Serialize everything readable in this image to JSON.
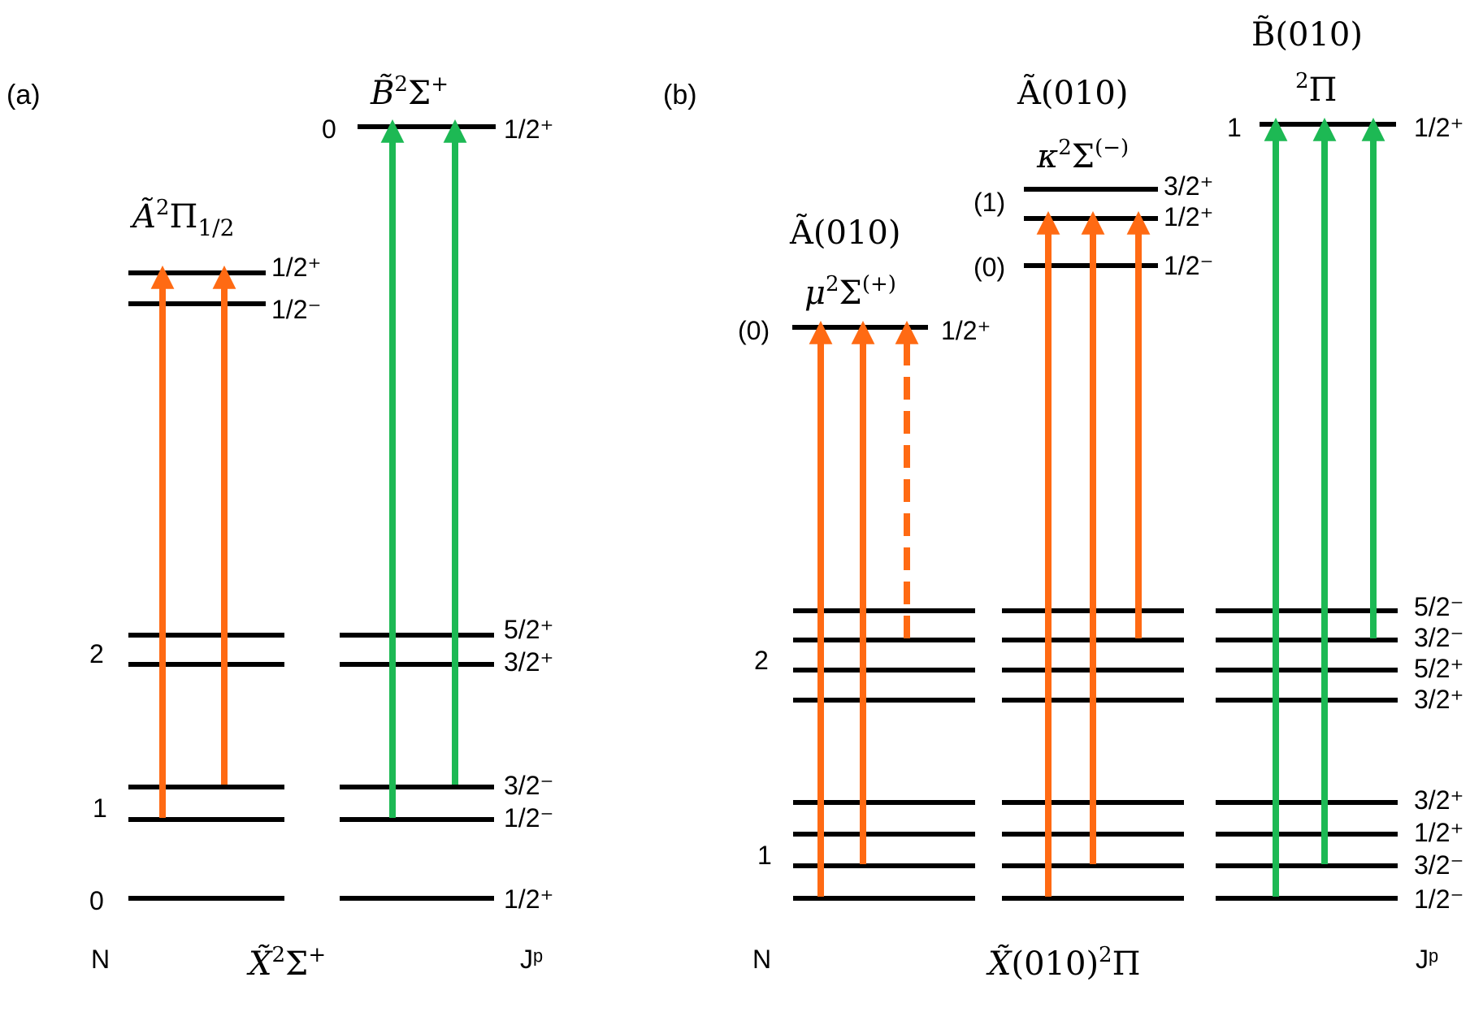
{
  "colors": {
    "orange": "#ff6a13",
    "green": "#1db954",
    "level": "#000000"
  },
  "panel_a": {
    "tag": "(a)",
    "n_header": "N",
    "jp_header": "Jᵖ",
    "ground_label": {
      "base": "X̃",
      "sup": "2",
      "term": "Σ",
      "sup2": "+"
    },
    "upper_a": {
      "base": "Ã",
      "sup": "2",
      "term": "Π",
      "sub": "1/2"
    },
    "upper_b": {
      "base": "B̃",
      "sup": "2",
      "term": "Σ",
      "sup2": "+"
    },
    "upper_a_j": [
      "1/2⁺",
      "1/2⁻"
    ],
    "upper_b_n": "0",
    "upper_b_j": "1/2⁺",
    "n_labels": [
      "2",
      "1",
      "0"
    ],
    "j_labels": [
      "5/2⁺",
      "3/2⁺",
      "3/2⁻",
      "1/2⁻",
      "1/2⁺"
    ]
  },
  "panel_b": {
    "tag": "(b)",
    "n_header": "N",
    "jp_header": "Jᵖ",
    "ground_label": {
      "base": "X̃",
      "vib": "(010)",
      "sup": "2",
      "term": "Π"
    },
    "mu_state": {
      "name": "Ã(010)",
      "base": "μ",
      "sup": "2",
      "term": "Σ",
      "sup2": "(+)"
    },
    "kappa_state": {
      "name": "Ã(010)",
      "base": "κ",
      "sup": "2",
      "term": "Σ",
      "sup2": "(−)"
    },
    "b_state": {
      "name": "B̃(010)",
      "sup": "2",
      "term": "Π"
    },
    "mu_n": "(0)",
    "mu_j": "1/2⁺",
    "kappa_n": [
      "(1)",
      "(0)"
    ],
    "kappa_j": [
      "3/2⁺",
      "1/2⁺",
      "1/2⁻"
    ],
    "b_n": "1",
    "b_j": "1/2⁺",
    "n_labels": [
      "2",
      "1"
    ],
    "j_labels": [
      "5/2⁻",
      "3/2⁻",
      "5/2⁺",
      "3/2⁺",
      "3/2⁺",
      "1/2⁺",
      "3/2⁻",
      "1/2⁻"
    ]
  }
}
